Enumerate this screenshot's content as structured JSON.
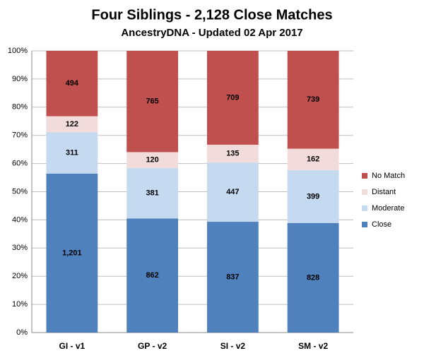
{
  "chart_data": {
    "type": "bar",
    "stacking": "percent",
    "title": "Four Siblings - 2,128 Close Matches",
    "subtitle": "AncestryDNA - Updated 02 Apr 2017",
    "categories": [
      "GI - v1",
      "GP - v2",
      "SI - v2",
      "SM - v2"
    ],
    "series": [
      {
        "name": "Close",
        "color": "#4f81bd",
        "values": [
          1201,
          862,
          837,
          828
        ],
        "value_labels": [
          "1,201",
          "862",
          "837",
          "828"
        ]
      },
      {
        "name": "Moderate",
        "color": "#c5d9f1",
        "values": [
          311,
          381,
          447,
          399
        ]
      },
      {
        "name": "Distant",
        "color": "#f2dcdb",
        "values": [
          122,
          120,
          135,
          162
        ]
      },
      {
        "name": "No Match",
        "color": "#c0504d",
        "values": [
          494,
          765,
          709,
          739
        ]
      }
    ],
    "ylim": [
      0,
      100
    ],
    "yticks": [
      {
        "value": 0,
        "label": "0%"
      },
      {
        "value": 10,
        "label": "10%"
      },
      {
        "value": 20,
        "label": "20%"
      },
      {
        "value": 30,
        "label": "30%"
      },
      {
        "value": 40,
        "label": "40%"
      },
      {
        "value": 50,
        "label": "50%"
      },
      {
        "value": 60,
        "label": "60%"
      },
      {
        "value": 70,
        "label": "70%"
      },
      {
        "value": 80,
        "label": "80%"
      },
      {
        "value": 90,
        "label": "90%"
      },
      {
        "value": 100,
        "label": "100%"
      }
    ],
    "grid": true,
    "legend": "right"
  }
}
